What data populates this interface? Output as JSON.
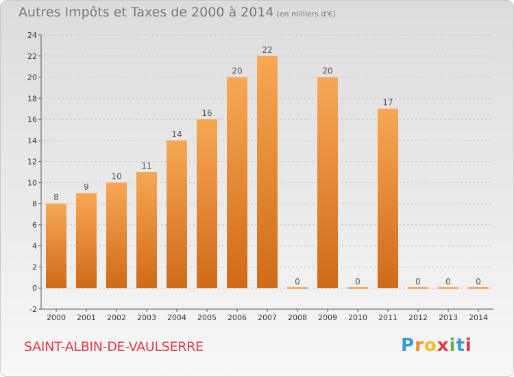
{
  "chart_data": {
    "type": "bar",
    "title": "Autres Impôts et Taxes de 2000 à 2014",
    "unit_label": "(en milliers d'€)",
    "categories": [
      "2000",
      "2001",
      "2002",
      "2003",
      "2004",
      "2005",
      "2006",
      "2007",
      "2008",
      "2009",
      "2010",
      "2011",
      "2012",
      "2013",
      "2014"
    ],
    "values": [
      8,
      9,
      10,
      11,
      14,
      16,
      20,
      22,
      0,
      20,
      0,
      17,
      0,
      0,
      0
    ],
    "value_labels": [
      "8",
      "9",
      "10",
      "11",
      "14",
      "16",
      "20",
      "22",
      "0",
      "20",
      "0",
      "17",
      "0",
      "0",
      "0"
    ],
    "ylim": [
      -2,
      24
    ],
    "yticks": [
      -2,
      0,
      2,
      4,
      6,
      8,
      10,
      12,
      14,
      16,
      18,
      20,
      22,
      24
    ],
    "grid": "horizontal-dashed",
    "bar_color": "#f0923a",
    "bar_color_dark": "#d06a18"
  },
  "commune": "SAINT-ALBIN-DE-VAULSERRE",
  "logo": {
    "letters": [
      "P",
      "r",
      "o",
      "x",
      "i",
      "t",
      "i"
    ],
    "colors": [
      "#3a9ad9",
      "#f08a24",
      "#f0c020",
      "#e0384a",
      "#6ab04c",
      "#3a9ad9",
      "#e0384a"
    ]
  }
}
